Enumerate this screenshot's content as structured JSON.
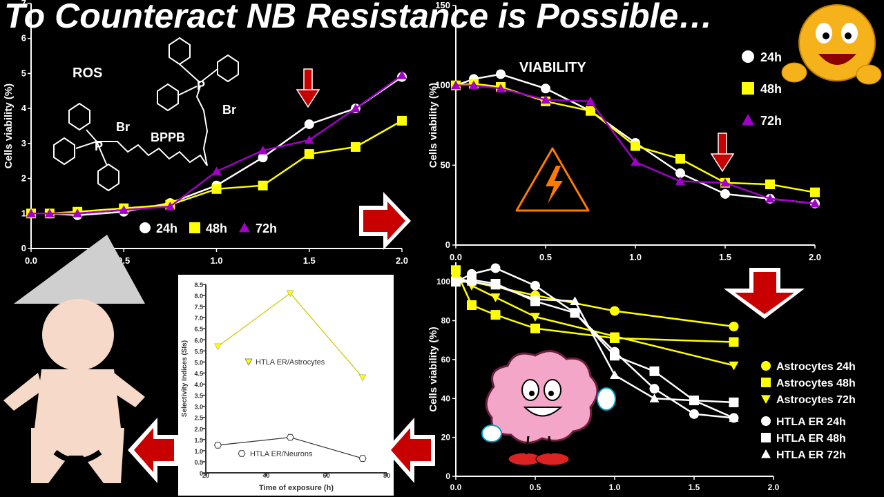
{
  "title": "To Counteract NB Resistance is Possible…",
  "colors": {
    "yellow": "#ffff00",
    "white": "#ffffff",
    "purple": "#a000c8",
    "red": "#c80000",
    "skin": "#f7d9c9",
    "brain": "#f4a6c8",
    "bg": "#000000"
  },
  "chart_data": [
    {
      "type": "line",
      "panel": "ROS",
      "annotation": "ROS",
      "molecule_label": "BPPB",
      "molecule_atoms": {
        "phosphorus": "P",
        "bromide": "Br"
      },
      "ylabel": "Cells viability (%)",
      "xlim": [
        0,
        2
      ],
      "ylim": [
        0,
        7
      ],
      "x_ticks": [
        "0.0",
        "0.5",
        "1.0",
        "1.5",
        "2.0"
      ],
      "y_ticks": [
        "0",
        "1",
        "2",
        "3",
        "4",
        "5",
        "6",
        "7"
      ],
      "legend": "bottom-center",
      "series": [
        {
          "name": "24h",
          "marker": "circle",
          "color": "#ffffff",
          "x": [
            0,
            0.1,
            0.25,
            0.5,
            0.75,
            1.0,
            1.25,
            1.5,
            1.75,
            2.0
          ],
          "y": [
            1.0,
            1.0,
            0.95,
            1.05,
            1.3,
            1.8,
            2.6,
            3.55,
            4.0,
            4.9
          ]
        },
        {
          "name": "48h",
          "marker": "square",
          "color": "#ffff00",
          "x": [
            0,
            0.1,
            0.25,
            0.5,
            0.75,
            1.0,
            1.25,
            1.5,
            1.75,
            2.0
          ],
          "y": [
            1.0,
            1.0,
            1.05,
            1.15,
            1.25,
            1.7,
            1.8,
            2.7,
            2.9,
            3.65
          ]
        },
        {
          "name": "72h",
          "marker": "triangle",
          "color": "#a000c8",
          "x": [
            0,
            0.1,
            0.25,
            0.5,
            0.75,
            1.0,
            1.25,
            1.5,
            1.75,
            2.0
          ],
          "y": [
            1.0,
            1.0,
            1.0,
            1.1,
            1.2,
            2.2,
            2.8,
            3.1,
            4.0,
            4.95
          ]
        }
      ]
    },
    {
      "type": "line",
      "panel": "VIABILITY",
      "annotation": "VIABILITY",
      "ylabel": "Cells viability (%)",
      "xlim": [
        0,
        2
      ],
      "ylim": [
        0,
        150
      ],
      "x_ticks": [
        "0.0",
        "0.5",
        "1.0",
        "1.5",
        "2.0"
      ],
      "y_ticks": [
        "0",
        "50",
        "100",
        "150"
      ],
      "legend": "top-right",
      "series": [
        {
          "name": "24h",
          "marker": "circle",
          "color": "#ffffff",
          "x": [
            0,
            0.1,
            0.25,
            0.5,
            0.75,
            1.0,
            1.25,
            1.5,
            1.75,
            2.0
          ],
          "y": [
            100,
            104,
            107,
            98,
            84,
            64,
            45,
            32,
            29,
            26
          ]
        },
        {
          "name": "48h",
          "marker": "square",
          "color": "#ffff00",
          "x": [
            0,
            0.1,
            0.25,
            0.5,
            0.75,
            1.0,
            1.25,
            1.5,
            1.75,
            2.0
          ],
          "y": [
            100,
            101,
            99,
            90,
            84,
            62,
            54,
            39,
            38,
            33
          ]
        },
        {
          "name": "72h",
          "marker": "triangle",
          "color": "#a000c8",
          "x": [
            0,
            0.1,
            0.25,
            0.5,
            0.75,
            1.0,
            1.25,
            1.5,
            1.75,
            2.0
          ],
          "y": [
            100,
            100,
            98,
            91,
            90,
            52,
            40,
            39,
            29,
            26
          ]
        }
      ]
    },
    {
      "type": "line",
      "panel": "Astrocytes vs HTLA ER",
      "ylabel": "Cells viability (%)",
      "xlim": [
        0,
        2
      ],
      "ylim": [
        0,
        110
      ],
      "x_ticks": [
        "0.0",
        "0.5",
        "1.0",
        "1.5",
        "2.0"
      ],
      "y_ticks": [
        "0",
        "20",
        "40",
        "60",
        "80",
        "100"
      ],
      "legend": "right",
      "series": [
        {
          "name": "Astrocytes 24h",
          "marker": "circle",
          "color": "#ffff00",
          "x": [
            0,
            0.1,
            0.5,
            1.0,
            1.75
          ],
          "y": [
            102,
            100,
            93,
            85,
            77
          ]
        },
        {
          "name": "Astrocytes 48h",
          "marker": "square",
          "color": "#ffff00",
          "x": [
            0,
            0.1,
            0.25,
            0.5,
            1.0,
            1.75
          ],
          "y": [
            106,
            88,
            83,
            76,
            71,
            69
          ]
        },
        {
          "name": "Astrocytes 72h",
          "marker": "triangle-down",
          "color": "#ffff00",
          "x": [
            0,
            0.1,
            0.25,
            0.5,
            1.0,
            1.75
          ],
          "y": [
            104,
            98,
            92,
            82,
            72,
            57
          ]
        },
        {
          "name": "HTLA ER 24h",
          "marker": "circle",
          "color": "#ffffff",
          "x": [
            0,
            0.1,
            0.25,
            0.5,
            0.75,
            1.0,
            1.25,
            1.5,
            1.75
          ],
          "y": [
            100,
            104,
            107,
            98,
            84,
            64,
            45,
            32,
            30
          ]
        },
        {
          "name": "HTLA ER 48h",
          "marker": "square",
          "color": "#ffffff",
          "x": [
            0,
            0.1,
            0.25,
            0.5,
            0.75,
            1.0,
            1.25,
            1.5,
            1.75
          ],
          "y": [
            100,
            101,
            99,
            90,
            84,
            62,
            54,
            39,
            38
          ]
        },
        {
          "name": "HTLA ER 72h",
          "marker": "triangle",
          "color": "#ffffff",
          "x": [
            0,
            0.1,
            0.25,
            0.5,
            0.75,
            1.0,
            1.25,
            1.5,
            1.75
          ],
          "y": [
            100,
            100,
            98,
            91,
            90,
            52,
            40,
            39,
            30
          ]
        }
      ]
    },
    {
      "type": "line",
      "panel": "Selectivity",
      "xlabel": "Time of exposure (h)",
      "ylabel": "Selectivity Indices (SIs)",
      "xlim": [
        20,
        80
      ],
      "ylim": [
        0,
        8.5
      ],
      "x_ticks": [
        "20",
        "40",
        "60",
        "80"
      ],
      "y_ticks": [
        "0",
        "0.5",
        "1.0",
        "1.5",
        "2.0",
        "2.5",
        "3.0",
        "3.5",
        "4.0",
        "4.5",
        "5.0",
        "5.5",
        "6.0",
        "6.5",
        "7.0",
        "7.5",
        "8.0",
        "8.5"
      ],
      "series": [
        {
          "name": "HTLA ER/Astrocytes",
          "marker": "triangle-down",
          "color": "#ffff00",
          "x": [
            24,
            48,
            72
          ],
          "y": [
            5.7,
            8.1,
            4.3
          ]
        },
        {
          "name": "HTLA ER/Neurons",
          "marker": "hexagon",
          "color": "#ffffff",
          "x": [
            24,
            48,
            72
          ],
          "y": [
            1.25,
            1.6,
            0.65
          ]
        }
      ]
    }
  ]
}
